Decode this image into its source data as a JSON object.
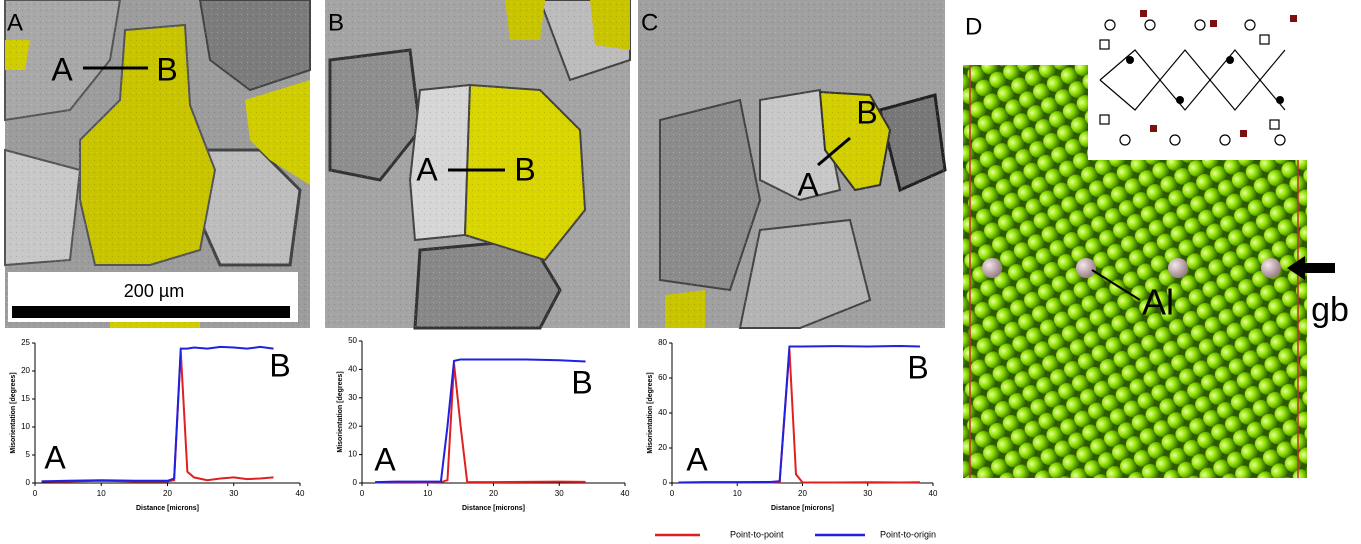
{
  "panels": [
    {
      "label": "A",
      "annotations": [
        "A",
        "B"
      ],
      "scale_bar": "200 µm"
    },
    {
      "label": "B",
      "annotations": [
        "A",
        "B"
      ]
    },
    {
      "label": "C",
      "annotations": [
        "A",
        "B"
      ]
    },
    {
      "label": "D",
      "annotations": [
        "Al",
        "gb"
      ]
    }
  ],
  "chart_data": [
    {
      "type": "line",
      "x_label": "Distance [microns]",
      "y_label": "Misorientation [degrees]",
      "annotations": [
        "A",
        "B"
      ],
      "x": [
        1,
        5,
        10,
        15,
        20,
        21,
        22,
        23,
        24,
        26,
        28,
        30,
        32,
        34,
        36
      ],
      "series": [
        {
          "name": "Point-to-point",
          "color": "#e02020",
          "values": [
            0.3,
            0.3,
            0.4,
            0.3,
            0.3,
            0.5,
            23.5,
            2,
            1,
            0.5,
            0.8,
            1,
            0.7,
            0.8,
            1
          ]
        },
        {
          "name": "Point-to-origin",
          "color": "#2020e0",
          "values": [
            0.3,
            0.4,
            0.5,
            0.4,
            0.4,
            0.8,
            24,
            24,
            24.2,
            24,
            24.3,
            24.2,
            24,
            24.3,
            24
          ]
        }
      ],
      "xlim": [
        0,
        40
      ],
      "xticks": [
        0,
        10,
        20,
        30,
        40
      ],
      "ylim": [
        0,
        25
      ],
      "yticks": [
        0,
        5,
        10,
        15,
        20,
        25
      ]
    },
    {
      "type": "line",
      "x_label": "Distance [microns]",
      "y_label": "Misorientation [degrees]",
      "annotations": [
        "A",
        "B"
      ],
      "x": [
        2,
        5,
        10,
        12,
        13,
        14,
        15,
        16,
        20,
        25,
        30,
        34
      ],
      "series": [
        {
          "name": "Point-to-point",
          "color": "#e02020",
          "values": [
            0.2,
            0.3,
            0.2,
            0.3,
            1,
            42,
            20,
            0.3,
            0.3,
            0.4,
            0.5,
            0.4
          ]
        },
        {
          "name": "Point-to-origin",
          "color": "#2020e0",
          "values": [
            0.3,
            0.5,
            0.5,
            0.5,
            20,
            43,
            43.5,
            43.5,
            43.5,
            43.5,
            43.2,
            42.8
          ]
        }
      ],
      "xlim": [
        0,
        40
      ],
      "xticks": [
        0,
        10,
        20,
        30,
        40
      ],
      "ylim": [
        0,
        50
      ],
      "yticks": [
        0,
        10,
        20,
        30,
        40,
        50
      ]
    },
    {
      "type": "line",
      "x_label": "Distance [microns]",
      "y_label": "Misorientation [degrees]",
      "annotations": [
        "A",
        "B"
      ],
      "x": [
        1,
        5,
        10,
        15,
        16.5,
        18,
        19,
        20,
        25,
        30,
        35,
        38
      ],
      "series": [
        {
          "name": "Point-to-point",
          "color": "#e02020",
          "values": [
            0.2,
            0.3,
            0.3,
            0.3,
            0.5,
            76,
            5,
            0.3,
            0.3,
            0.4,
            0.3,
            0.4
          ]
        },
        {
          "name": "Point-to-origin",
          "color": "#2020e0",
          "values": [
            0.3,
            0.5,
            0.5,
            0.6,
            1,
            78,
            78,
            78,
            78.2,
            78,
            78.3,
            78
          ]
        }
      ],
      "xlim": [
        0,
        40
      ],
      "xticks": [
        0,
        10,
        20,
        30,
        40
      ],
      "ylim": [
        0,
        80
      ],
      "yticks": [
        0,
        20,
        40,
        60,
        80
      ]
    }
  ]
}
